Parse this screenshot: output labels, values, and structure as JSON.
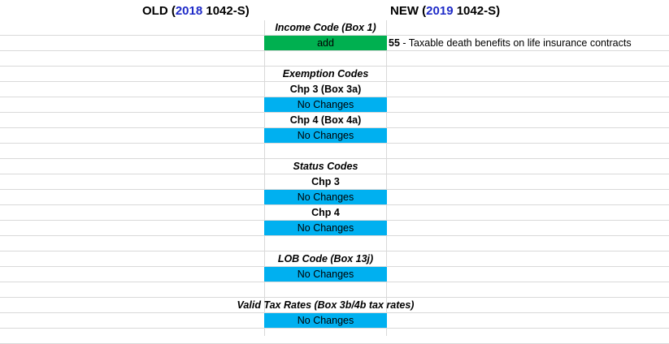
{
  "header": {
    "old_prefix": "OLD (",
    "old_year": "2018",
    "old_suffix": " 1042-S)",
    "new_prefix": "NEW (",
    "new_year": "2019",
    "new_suffix": " 1042-S)"
  },
  "income": {
    "title": "Income Code (Box 1)",
    "action": "add",
    "code": "55",
    "description": " - Taxable death benefits on life insurance contracts"
  },
  "exemption": {
    "title": "Exemption Codes",
    "chp3_label": "Chp 3 (Box 3a)",
    "chp3_status": "No Changes",
    "chp4_label": "Chp 4 (Box 4a)",
    "chp4_status": "No Changes"
  },
  "status_codes": {
    "title": "Status Codes",
    "chp3_label": "Chp 3",
    "chp3_status": "No Changes",
    "chp4_label": "Chp 4",
    "chp4_status": "No Changes"
  },
  "lob": {
    "title": "LOB Code (Box 13j)",
    "status": "No Changes"
  },
  "tax_rates": {
    "title": "Valid Tax Rates (Box 3b/4b tax rates)",
    "status": "No Changes"
  },
  "colors": {
    "year_blue": "#1f2bc8",
    "no_change_fill": "#00b0f0",
    "add_fill": "#00b050",
    "gridline": "#d9d9d9"
  }
}
